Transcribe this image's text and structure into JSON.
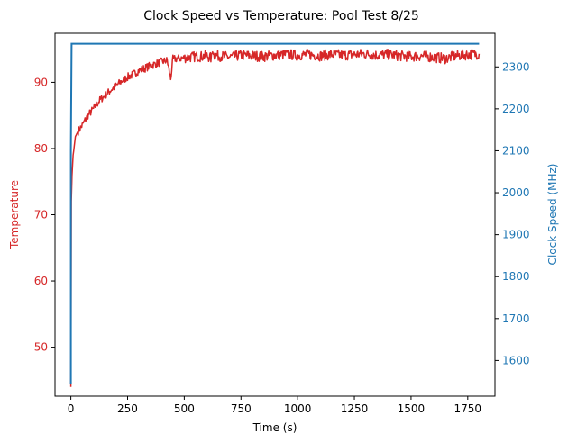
{
  "chart_data": {
    "type": "line",
    "title": "Clock Speed vs Temperature: Pool Test 8/25",
    "xlabel": "Time (s)",
    "ylabel_left": "Temperature",
    "ylabel_right": "Clock Speed (MHz)",
    "xlim": [
      -70,
      1870
    ],
    "ylim_left": [
      42.6,
      97.4
    ],
    "ylim_right": [
      1515,
      2380
    ],
    "x_ticks": [
      0,
      250,
      500,
      750,
      1000,
      1250,
      1500,
      1750
    ],
    "y_left_ticks": [
      50,
      60,
      70,
      80,
      90
    ],
    "y_right_ticks": [
      1600,
      1700,
      1800,
      1900,
      2000,
      2100,
      2200,
      2300
    ],
    "grid": false,
    "colors": {
      "temperature": "#d62728",
      "clock": "#1f77b4"
    },
    "series": [
      {
        "axis": "left",
        "color": "#d62728",
        "x": [
          0,
          2,
          5,
          10,
          20,
          30,
          50,
          75,
          100,
          125,
          150,
          175,
          200,
          225,
          250,
          275,
          300,
          325,
          350,
          375,
          400,
          425,
          440,
          450,
          475,
          500,
          525,
          550,
          575,
          600,
          620,
          625,
          630,
          650,
          700,
          750,
          800,
          850,
          900,
          950,
          1000,
          1050,
          1100,
          1150,
          1200,
          1250,
          1300,
          1350,
          1400,
          1450,
          1500,
          1550,
          1600,
          1650,
          1700,
          1750,
          1800
        ],
        "y": [
          44,
          72,
          76,
          79,
          81.8,
          82.5,
          83.5,
          85,
          86,
          87.2,
          88,
          88.8,
          89.5,
          90.2,
          90.8,
          91.2,
          91.8,
          92.1,
          92.5,
          92.8,
          93.1,
          93.3,
          90.5,
          93.5,
          93.6,
          93.7,
          93.8,
          93.9,
          93.9,
          94,
          93.6,
          95.2,
          94.2,
          94,
          93.8,
          94.1,
          94,
          93.9,
          94.1,
          94.2,
          94.1,
          94.2,
          94,
          94.2,
          94.1,
          94.2,
          94.3,
          94.1,
          94.2,
          94,
          93.9,
          94,
          93.8,
          93.6,
          94,
          94.2,
          94.3
        ]
      },
      {
        "axis": "right",
        "color": "#1f77b4",
        "x": [
          0,
          0,
          3,
          1800
        ],
        "y": [
          1545,
          2100,
          2355,
          2355
        ]
      }
    ]
  }
}
